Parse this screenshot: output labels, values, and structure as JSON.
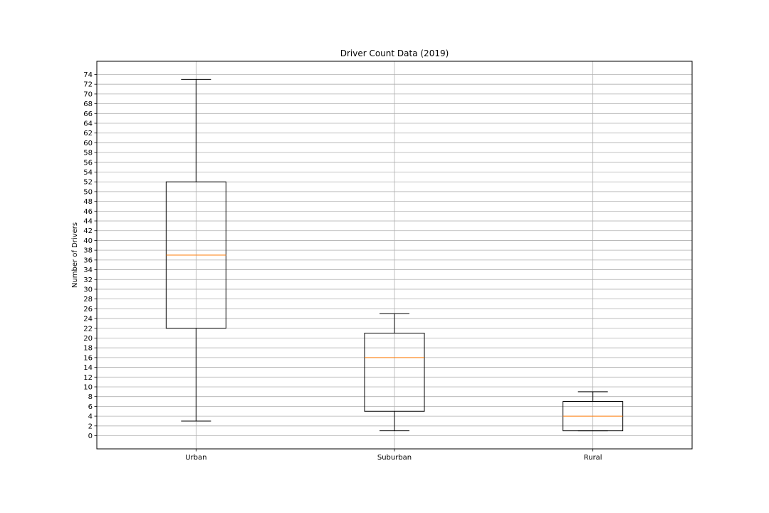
{
  "chart_data": {
    "type": "box",
    "title": "Driver Count Data (2019)",
    "xlabel": "",
    "ylabel": "Number of Drivers",
    "categories": [
      "Urban",
      "Suburban",
      "Rural"
    ],
    "boxes": [
      {
        "category": "Urban",
        "whisker_low": 3,
        "q1": 22,
        "median": 37,
        "q3": 52,
        "whisker_high": 73
      },
      {
        "category": "Suburban",
        "whisker_low": 1,
        "q1": 5,
        "median": 16,
        "q3": 21,
        "whisker_high": 25
      },
      {
        "category": "Rural",
        "whisker_low": 1,
        "q1": 1,
        "median": 4,
        "q3": 7,
        "whisker_high": 9
      }
    ],
    "ylim": [
      -2.7,
      76.7
    ],
    "yticks": [
      0,
      2,
      4,
      6,
      8,
      10,
      12,
      14,
      16,
      18,
      20,
      22,
      24,
      26,
      28,
      30,
      32,
      34,
      36,
      38,
      40,
      42,
      44,
      46,
      48,
      50,
      52,
      54,
      56,
      58,
      60,
      62,
      64,
      66,
      68,
      70,
      72,
      74
    ],
    "grid": true,
    "colors": {
      "box": "#000000",
      "median": "#ff7f0e",
      "grid": "#b0b0b0"
    }
  }
}
